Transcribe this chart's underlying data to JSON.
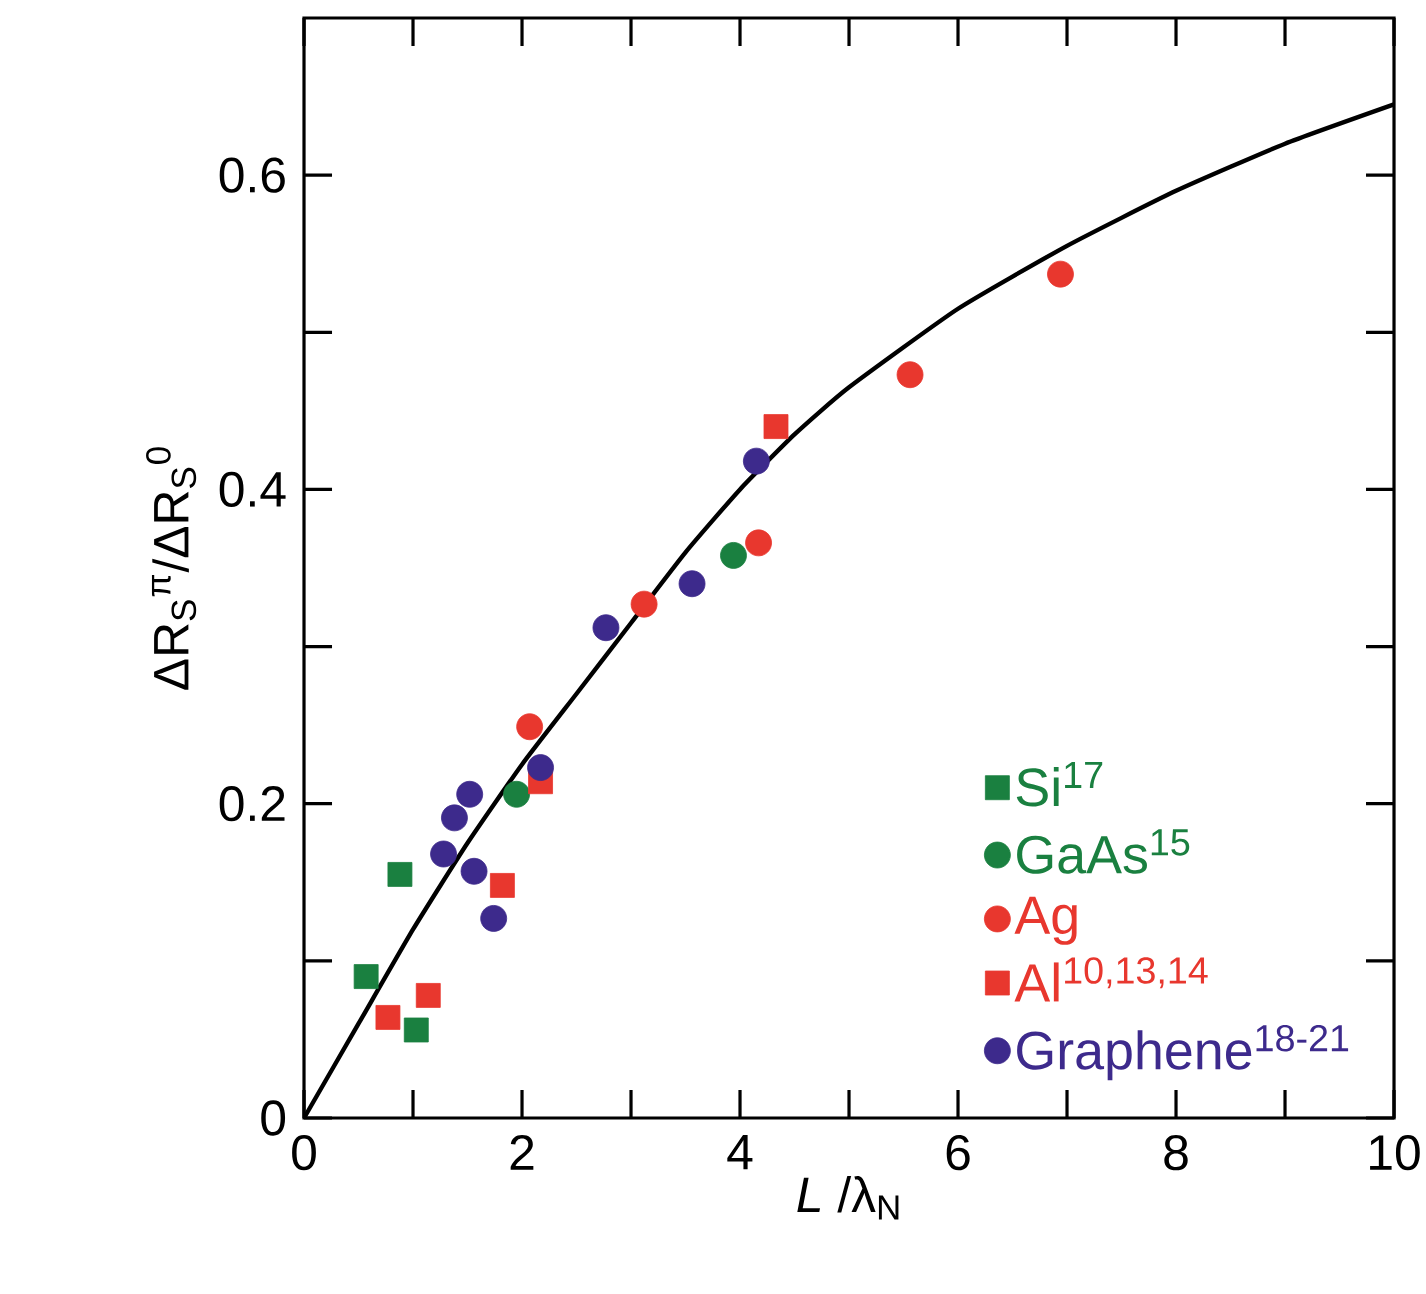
{
  "chart_data": {
    "type": "scatter",
    "xlabel": "*L* /λ$_{N}$",
    "ylabel": "ΔR$_{S}$$^{π}$/ΔR$_{S}$$^{0}$",
    "xlim": [
      0,
      10
    ],
    "ylim": [
      0,
      0.7
    ],
    "xticks": [
      0,
      {
        "value": 1,
        "label": null
      },
      2,
      {
        "value": 3,
        "label": null
      },
      4,
      {
        "value": 5,
        "label": null
      },
      6,
      {
        "value": 7,
        "label": null
      },
      8,
      {
        "value": 9,
        "label": null
      },
      10
    ],
    "yticks": [
      0,
      {
        "value": 0.1,
        "label": null
      },
      0.2,
      {
        "value": 0.3,
        "label": null
      },
      0.4,
      {
        "value": 0.5,
        "label": null
      },
      0.6
    ],
    "legend": "bottom right",
    "grid": false,
    "series": [
      {
        "name": "Si$^{17}$",
        "color": "#1a8040",
        "marker": "square",
        "x": [
          0.57,
          0.88,
          1.03
        ],
        "values": [
          0.09,
          0.155,
          0.056
        ]
      },
      {
        "name": "GaAs$^{15}$",
        "color": "#1a8040",
        "marker": "circle",
        "x": [
          1.95,
          3.94
        ],
        "values": [
          0.206,
          0.358
        ]
      },
      {
        "name": "Ag",
        "color": "#e8372e",
        "marker": "circle",
        "x": [
          2.07,
          3.12,
          4.17,
          5.56,
          6.94
        ],
        "values": [
          0.249,
          0.327,
          0.366,
          0.473,
          0.537
        ]
      },
      {
        "name": "Al$^{10,13,14}$",
        "color": "#e8372e",
        "marker": "square",
        "x": [
          0.77,
          1.14,
          1.82,
          2.17,
          4.33
        ],
        "values": [
          0.064,
          0.078,
          0.148,
          0.214,
          0.44
        ]
      },
      {
        "name": "Graphene$^{18-21}$",
        "color": "#3d2a8c",
        "marker": "circle",
        "x": [
          1.52,
          1.38,
          1.28,
          1.56,
          1.74,
          2.17,
          2.77,
          3.56,
          4.15
        ],
        "values": [
          0.206,
          0.191,
          0.168,
          0.157,
          0.127,
          0.223,
          0.312,
          0.34,
          0.418
        ]
      },
      {
        "type": "line",
        "color": "#000000",
        "marker": "none",
        "x": [
          0,
          0.5,
          1,
          1.5,
          2,
          2.5,
          3,
          3.5,
          4,
          4.5,
          5,
          6,
          7,
          8,
          9,
          10
        ],
        "values": [
          0,
          0.06,
          0.12,
          0.175,
          0.225,
          0.27,
          0.315,
          0.36,
          0.4,
          0.435,
          0.465,
          0.515,
          0.555,
          0.59,
          0.62,
          0.645
        ]
      }
    ]
  }
}
